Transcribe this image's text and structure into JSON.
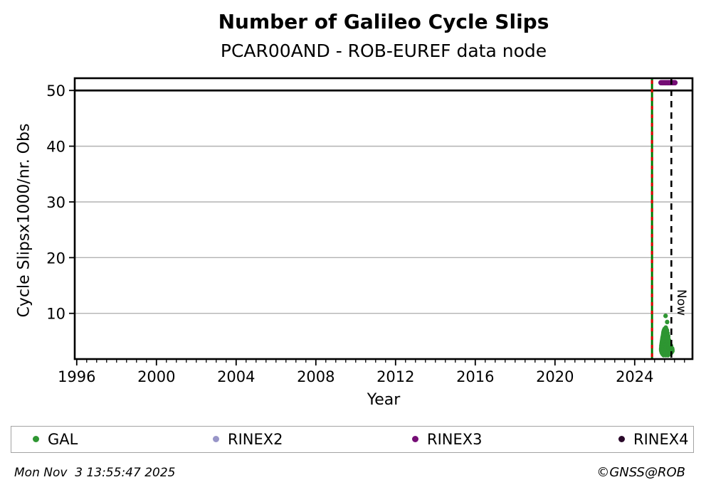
{
  "header": {
    "title": "Number of Galileo Cycle Slips",
    "subtitle": "PCAR00AND - ROB-EUREF data node"
  },
  "chart_data": {
    "type": "scatter",
    "title": "Number of Galileo Cycle Slips",
    "subtitle": "PCAR00AND - ROB-EUREF data node",
    "xlabel": "Year",
    "ylabel": "Cycle Slipsx1000/nr. Obs",
    "xlim": [
      1995.9,
      2026.9
    ],
    "ylim": [
      1.8,
      52.2
    ],
    "x_major_ticks": [
      1996,
      2000,
      2004,
      2008,
      2012,
      2016,
      2020,
      2024
    ],
    "x_minor_step": 0.5,
    "y_ticks": [
      10,
      20,
      30,
      40,
      50
    ],
    "grid": "horizontal",
    "grid_color": "#b3b3b3",
    "frame_color": "#000000",
    "threshold_line": {
      "value": 50,
      "color": "#000000"
    },
    "availability_line": {
      "x": 2024.87,
      "base_color": "#007a00",
      "dash_color": "#e00000"
    },
    "now_line": {
      "x": 2025.84,
      "label": "Now",
      "color": "#000000"
    },
    "legend_position": "bottom",
    "series": [
      {
        "name": "GAL",
        "color": "#2e9632",
        "cluster": [
          {
            "v": 9.55,
            "x": [
              2025.55
            ]
          },
          {
            "v": 8.45,
            "x": [
              2025.63
            ]
          },
          {
            "v": 7.45,
            "x": [
              2025.56
            ]
          },
          {
            "v": 7.2,
            "x": [
              2025.5,
              2025.58
            ]
          },
          {
            "v": 6.95,
            "x": [
              2025.47,
              2025.54,
              2025.62
            ]
          },
          {
            "v": 6.7,
            "x": [
              2025.45,
              2025.52,
              2025.6
            ]
          },
          {
            "v": 6.45,
            "x": [
              2025.44,
              2025.51,
              2025.58,
              2025.65
            ]
          },
          {
            "v": 6.2,
            "x": [
              2025.43,
              2025.5,
              2025.57,
              2025.64
            ]
          },
          {
            "v": 5.95,
            "x": [
              2025.42,
              2025.49,
              2025.56,
              2025.63,
              2025.68
            ]
          },
          {
            "v": 5.7,
            "x": [
              2025.4,
              2025.47,
              2025.54,
              2025.61,
              2025.68
            ]
          },
          {
            "v": 5.45,
            "x": [
              2025.39,
              2025.46,
              2025.53,
              2025.6,
              2025.67
            ]
          },
          {
            "v": 5.2,
            "x": [
              2025.38,
              2025.45,
              2025.52,
              2025.59,
              2025.66,
              2025.72
            ]
          },
          {
            "v": 4.95,
            "x": [
              2025.37,
              2025.44,
              2025.51,
              2025.58,
              2025.65,
              2025.72
            ]
          },
          {
            "v": 4.7,
            "x": [
              2025.36,
              2025.43,
              2025.5,
              2025.57,
              2025.64,
              2025.71,
              2025.77
            ]
          },
          {
            "v": 4.45,
            "x": [
              2025.35,
              2025.42,
              2025.49,
              2025.56,
              2025.63,
              2025.7,
              2025.77
            ]
          },
          {
            "v": 4.2,
            "x": [
              2025.34,
              2025.41,
              2025.48,
              2025.55,
              2025.62,
              2025.69,
              2025.76,
              2025.82
            ]
          },
          {
            "v": 3.95,
            "x": [
              2025.34,
              2025.41,
              2025.48,
              2025.55,
              2025.62,
              2025.69,
              2025.76,
              2025.83
            ]
          },
          {
            "v": 3.7,
            "x": [
              2025.33,
              2025.4,
              2025.47,
              2025.54,
              2025.61,
              2025.68,
              2025.75,
              2025.82,
              2025.88
            ]
          },
          {
            "v": 3.45,
            "x": [
              2025.33,
              2025.4,
              2025.47,
              2025.54,
              2025.61,
              2025.68,
              2025.75,
              2025.82,
              2025.89
            ]
          },
          {
            "v": 3.2,
            "x": [
              2025.34,
              2025.42,
              2025.5,
              2025.58,
              2025.66,
              2025.74,
              2025.82,
              2025.89
            ]
          },
          {
            "v": 2.95,
            "x": [
              2025.36,
              2025.44,
              2025.52,
              2025.6,
              2025.68,
              2025.76,
              2025.84
            ]
          },
          {
            "v": 2.7,
            "x": [
              2025.4,
              2025.5,
              2025.6,
              2025.7,
              2025.79
            ]
          },
          {
            "v": 2.5,
            "x": [
              2025.45,
              2025.56,
              2025.67
            ]
          }
        ]
      },
      {
        "name": "RINEX2",
        "color": "#9895c8",
        "cluster": []
      },
      {
        "name": "RINEX3",
        "color": "#750d75",
        "band": {
          "value": 51.4,
          "x_start": 2025.32,
          "x_end": 2026.05,
          "step": 0.05
        }
      },
      {
        "name": "RINEX4",
        "color": "#2a092a",
        "cluster": []
      }
    ]
  },
  "legend": {
    "items": [
      {
        "label": "GAL",
        "color": "#2e9632"
      },
      {
        "label": "RINEX2",
        "color": "#9895c8"
      },
      {
        "label": "RINEX3",
        "color": "#750d75"
      },
      {
        "label": "RINEX4",
        "color": "#2a092a"
      }
    ]
  },
  "footer": {
    "timestamp": "Mon Nov  3 13:55:47 2025",
    "copyright": "©GNSS@ROB"
  }
}
